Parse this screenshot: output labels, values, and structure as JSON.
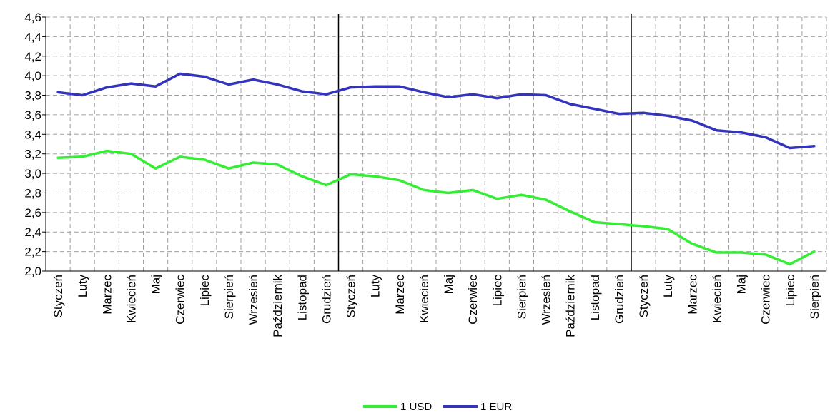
{
  "chart_data": {
    "type": "line",
    "categories": [
      "Styczeń",
      "Luty",
      "Marzec",
      "Kwiecień",
      "Maj",
      "Czerwiec",
      "Lipiec",
      "Sierpień",
      "Wrzesień",
      "Październik",
      "Listopad",
      "Grudzień",
      "Styczeń",
      "Luty",
      "Marzec",
      "Kwiecień",
      "Maj",
      "Czerwiec",
      "Lipiec",
      "Sierpień",
      "Wrzesień",
      "Październik",
      "Listopad",
      "Grudzień",
      "Styczeń",
      "Luty",
      "Marzec",
      "Kwiecień",
      "Maj",
      "Czerwiec",
      "Lipiec",
      "Sierpień"
    ],
    "series": [
      {
        "name": "1 USD",
        "color": "#33ee33",
        "values": [
          3.16,
          3.17,
          3.23,
          3.2,
          3.05,
          3.17,
          3.14,
          3.05,
          3.11,
          3.09,
          2.97,
          2.88,
          2.99,
          2.97,
          2.93,
          2.83,
          2.8,
          2.83,
          2.74,
          2.78,
          2.73,
          2.61,
          2.5,
          2.48,
          2.46,
          2.43,
          2.28,
          2.19,
          2.19,
          2.17,
          2.07,
          2.2
        ]
      },
      {
        "name": "1 EUR",
        "color": "#3333bb",
        "values": [
          3.83,
          3.8,
          3.88,
          3.92,
          3.89,
          4.02,
          3.99,
          3.91,
          3.96,
          3.91,
          3.84,
          3.81,
          3.88,
          3.89,
          3.89,
          3.83,
          3.78,
          3.81,
          3.77,
          3.81,
          3.8,
          3.71,
          3.66,
          3.61,
          3.62,
          3.59,
          3.54,
          3.44,
          3.42,
          3.37,
          3.26,
          3.28
        ]
      }
    ],
    "y_ticks": [
      "2,0",
      "2,2",
      "2,4",
      "2,6",
      "2,8",
      "3,0",
      "3,2",
      "3,4",
      "3,6",
      "3,8",
      "4,0",
      "4,2",
      "4,4",
      "4,6"
    ],
    "ylim": [
      2.0,
      4.6
    ],
    "y_step": 0.2,
    "year_dividers_after_index": [
      11,
      23
    ],
    "grid": true,
    "grid_style": "dashed",
    "legend": {
      "position": "bottom-center",
      "items": [
        "1 USD",
        "1 EUR"
      ]
    }
  }
}
